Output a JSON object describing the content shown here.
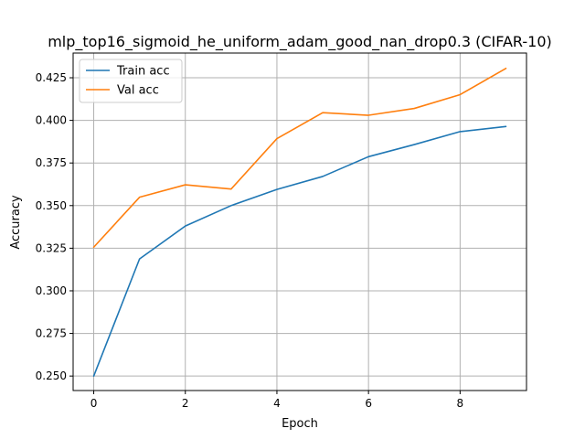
{
  "chart_data": {
    "type": "line",
    "title": "mlp_top16_sigmoid_he_uniform_adam_good_nan_drop0.3 (CIFAR-10)",
    "xlabel": "Epoch",
    "ylabel": "Accuracy",
    "x": [
      0,
      1,
      2,
      3,
      4,
      5,
      6,
      7,
      8,
      9
    ],
    "xlim": [
      -0.45,
      9.45
    ],
    "ylim": [
      0.2415,
      0.4395
    ],
    "x_ticks": [
      0,
      2,
      4,
      6,
      8
    ],
    "y_ticks": [
      0.25,
      0.275,
      0.3,
      0.325,
      0.35,
      0.375,
      0.4,
      0.425
    ],
    "x_tick_labels": [
      "0",
      "2",
      "4",
      "6",
      "8"
    ],
    "y_tick_labels": [
      "0.250",
      "0.275",
      "0.300",
      "0.325",
      "0.350",
      "0.375",
      "0.400",
      "0.425"
    ],
    "grid": true,
    "legend_position": "top-left",
    "series": [
      {
        "name": "Train acc",
        "color": "#1f77b4",
        "values": [
          0.25,
          0.3187,
          0.338,
          0.35,
          0.3595,
          0.3671,
          0.3787,
          0.3858,
          0.3934,
          0.3964
        ]
      },
      {
        "name": "Val acc",
        "color": "#ff7f0e",
        "values": [
          0.3256,
          0.3549,
          0.3622,
          0.3597,
          0.3893,
          0.4045,
          0.403,
          0.407,
          0.4151,
          0.4305
        ]
      }
    ]
  }
}
